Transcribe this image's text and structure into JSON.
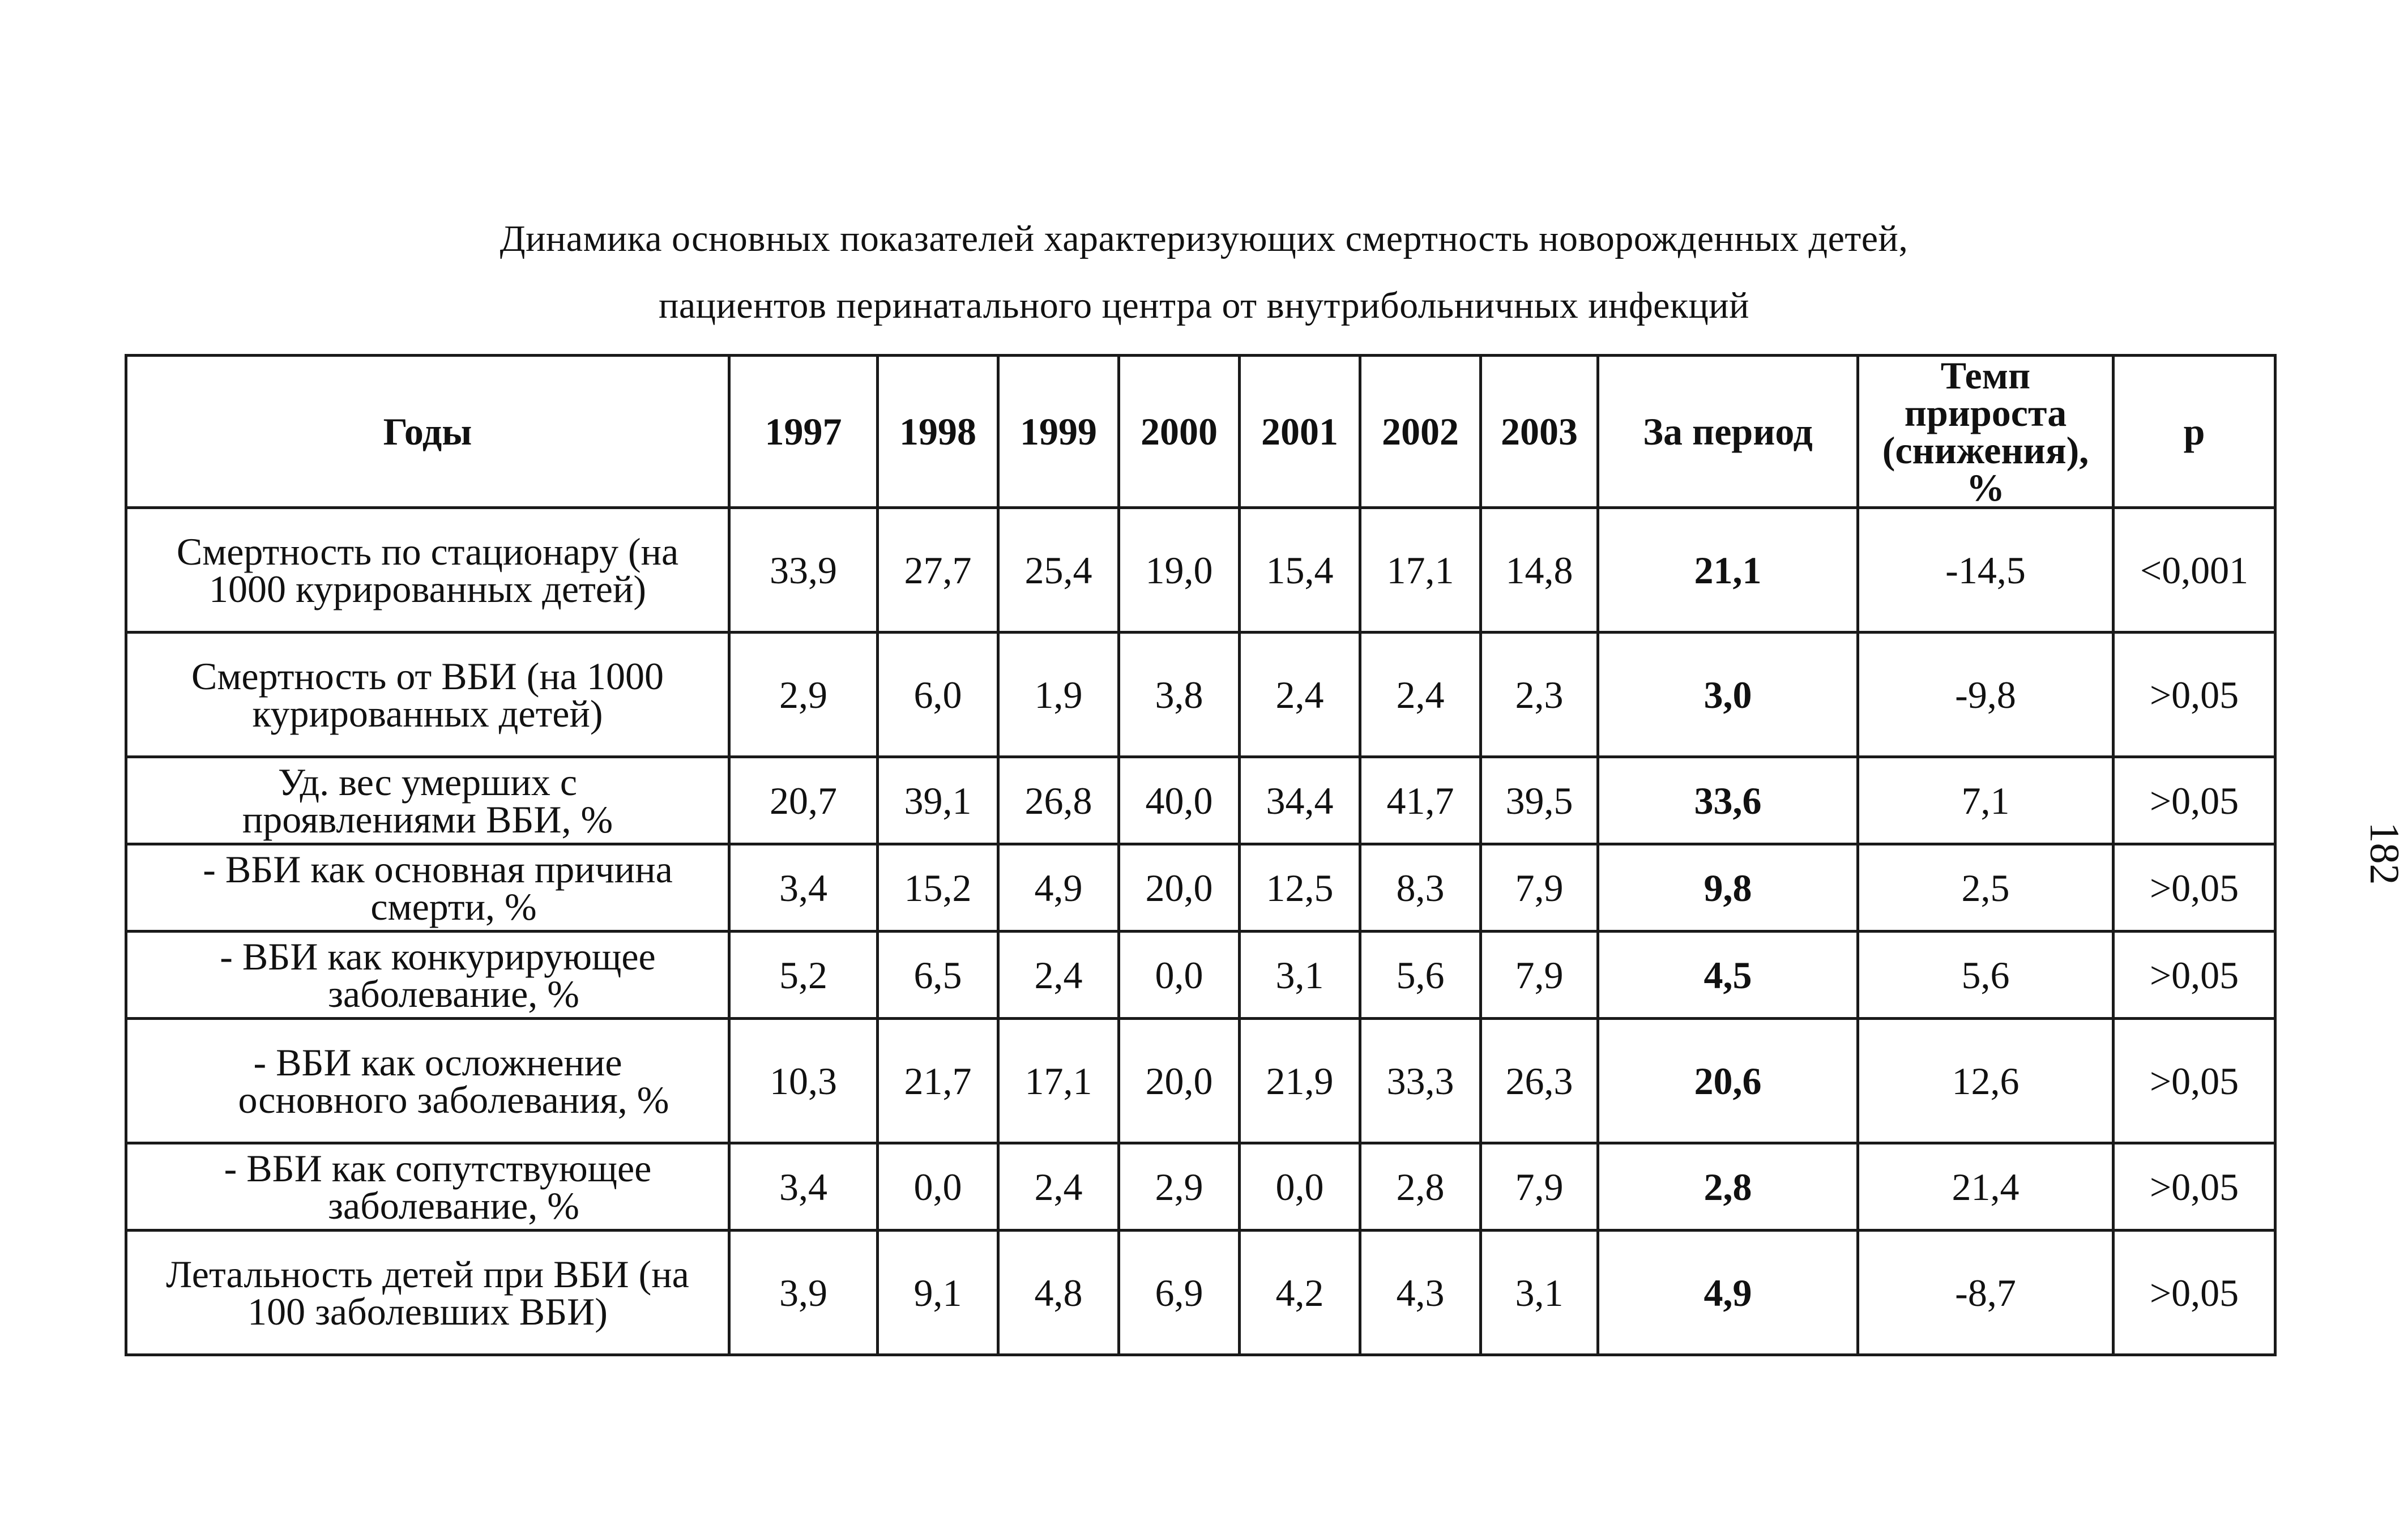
{
  "caption": {
    "line1": "Динамика основных показателей характеризующих смертность новорожденных детей,",
    "line2": "пациентов перинатального центра от внутрибольничных инфекций"
  },
  "table": {
    "headers": {
      "label": "Годы",
      "years": [
        "1997",
        "1998",
        "1999",
        "2000",
        "2001",
        "2002",
        "2003"
      ],
      "period": "За период",
      "temp_line1": "Темп",
      "temp_line2": "прироста",
      "temp_line3": "(снижения), %",
      "p": "р"
    },
    "rows": [
      {
        "label_line1": "Смертность по стационару (на",
        "label_line2": "1000 курированных детей)",
        "values": [
          "33,9",
          "27,7",
          "25,4",
          "19,0",
          "15,4",
          "17,1",
          "14,8"
        ],
        "period": "21,1",
        "temp": "-14,5",
        "p": "<0,001"
      },
      {
        "label_line1": "Смертность от ВБИ (на 1000",
        "label_line2": "курированных детей)",
        "values": [
          "2,9",
          "6,0",
          "1,9",
          "3,8",
          "2,4",
          "2,4",
          "2,3"
        ],
        "period": "3,0",
        "temp": "-9,8",
        "p": ">0,05"
      },
      {
        "label_line1": "Уд. вес умерших с",
        "label_line2": "проявлениями ВБИ, %",
        "values": [
          "20,7",
          "39,1",
          "26,8",
          "40,0",
          "34,4",
          "41,7",
          "39,5"
        ],
        "period": "33,6",
        "temp": "7,1",
        "p": ">0,05"
      },
      {
        "label_line1": "- ВБИ как основная причина",
        "label_line2": "смерти, %",
        "values": [
          "3,4",
          "15,2",
          "4,9",
          "20,0",
          "12,5",
          "8,3",
          "7,9"
        ],
        "period": "9,8",
        "temp": "2,5",
        "p": ">0,05"
      },
      {
        "label_line1": "- ВБИ как конкурирующее",
        "label_line2": "заболевание, %",
        "values": [
          "5,2",
          "6,5",
          "2,4",
          "0,0",
          "3,1",
          "5,6",
          "7,9"
        ],
        "period": "4,5",
        "temp": "5,6",
        "p": ">0,05"
      },
      {
        "label_line1": "- ВБИ как осложнение",
        "label_line2": "основного заболевания, %",
        "values": [
          "10,3",
          "21,7",
          "17,1",
          "20,0",
          "21,9",
          "33,3",
          "26,3"
        ],
        "period": "20,6",
        "temp": "12,6",
        "p": ">0,05"
      },
      {
        "label_line1": "- ВБИ как сопутствующее",
        "label_line2": "заболевание, %",
        "values": [
          "3,4",
          "0,0",
          "2,4",
          "2,9",
          "0,0",
          "2,8",
          "7,9"
        ],
        "period": "2,8",
        "temp": "21,4",
        "p": ">0,05"
      },
      {
        "label_line1": "Летальность детей при ВБИ (на",
        "label_line2": "100 заболевших ВБИ)",
        "values": [
          "3,9",
          "9,1",
          "4,8",
          "6,9",
          "4,2",
          "4,3",
          "3,1"
        ],
        "period": "4,9",
        "temp": "-8,7",
        "p": ">0,05"
      }
    ]
  },
  "page_number": "182"
}
